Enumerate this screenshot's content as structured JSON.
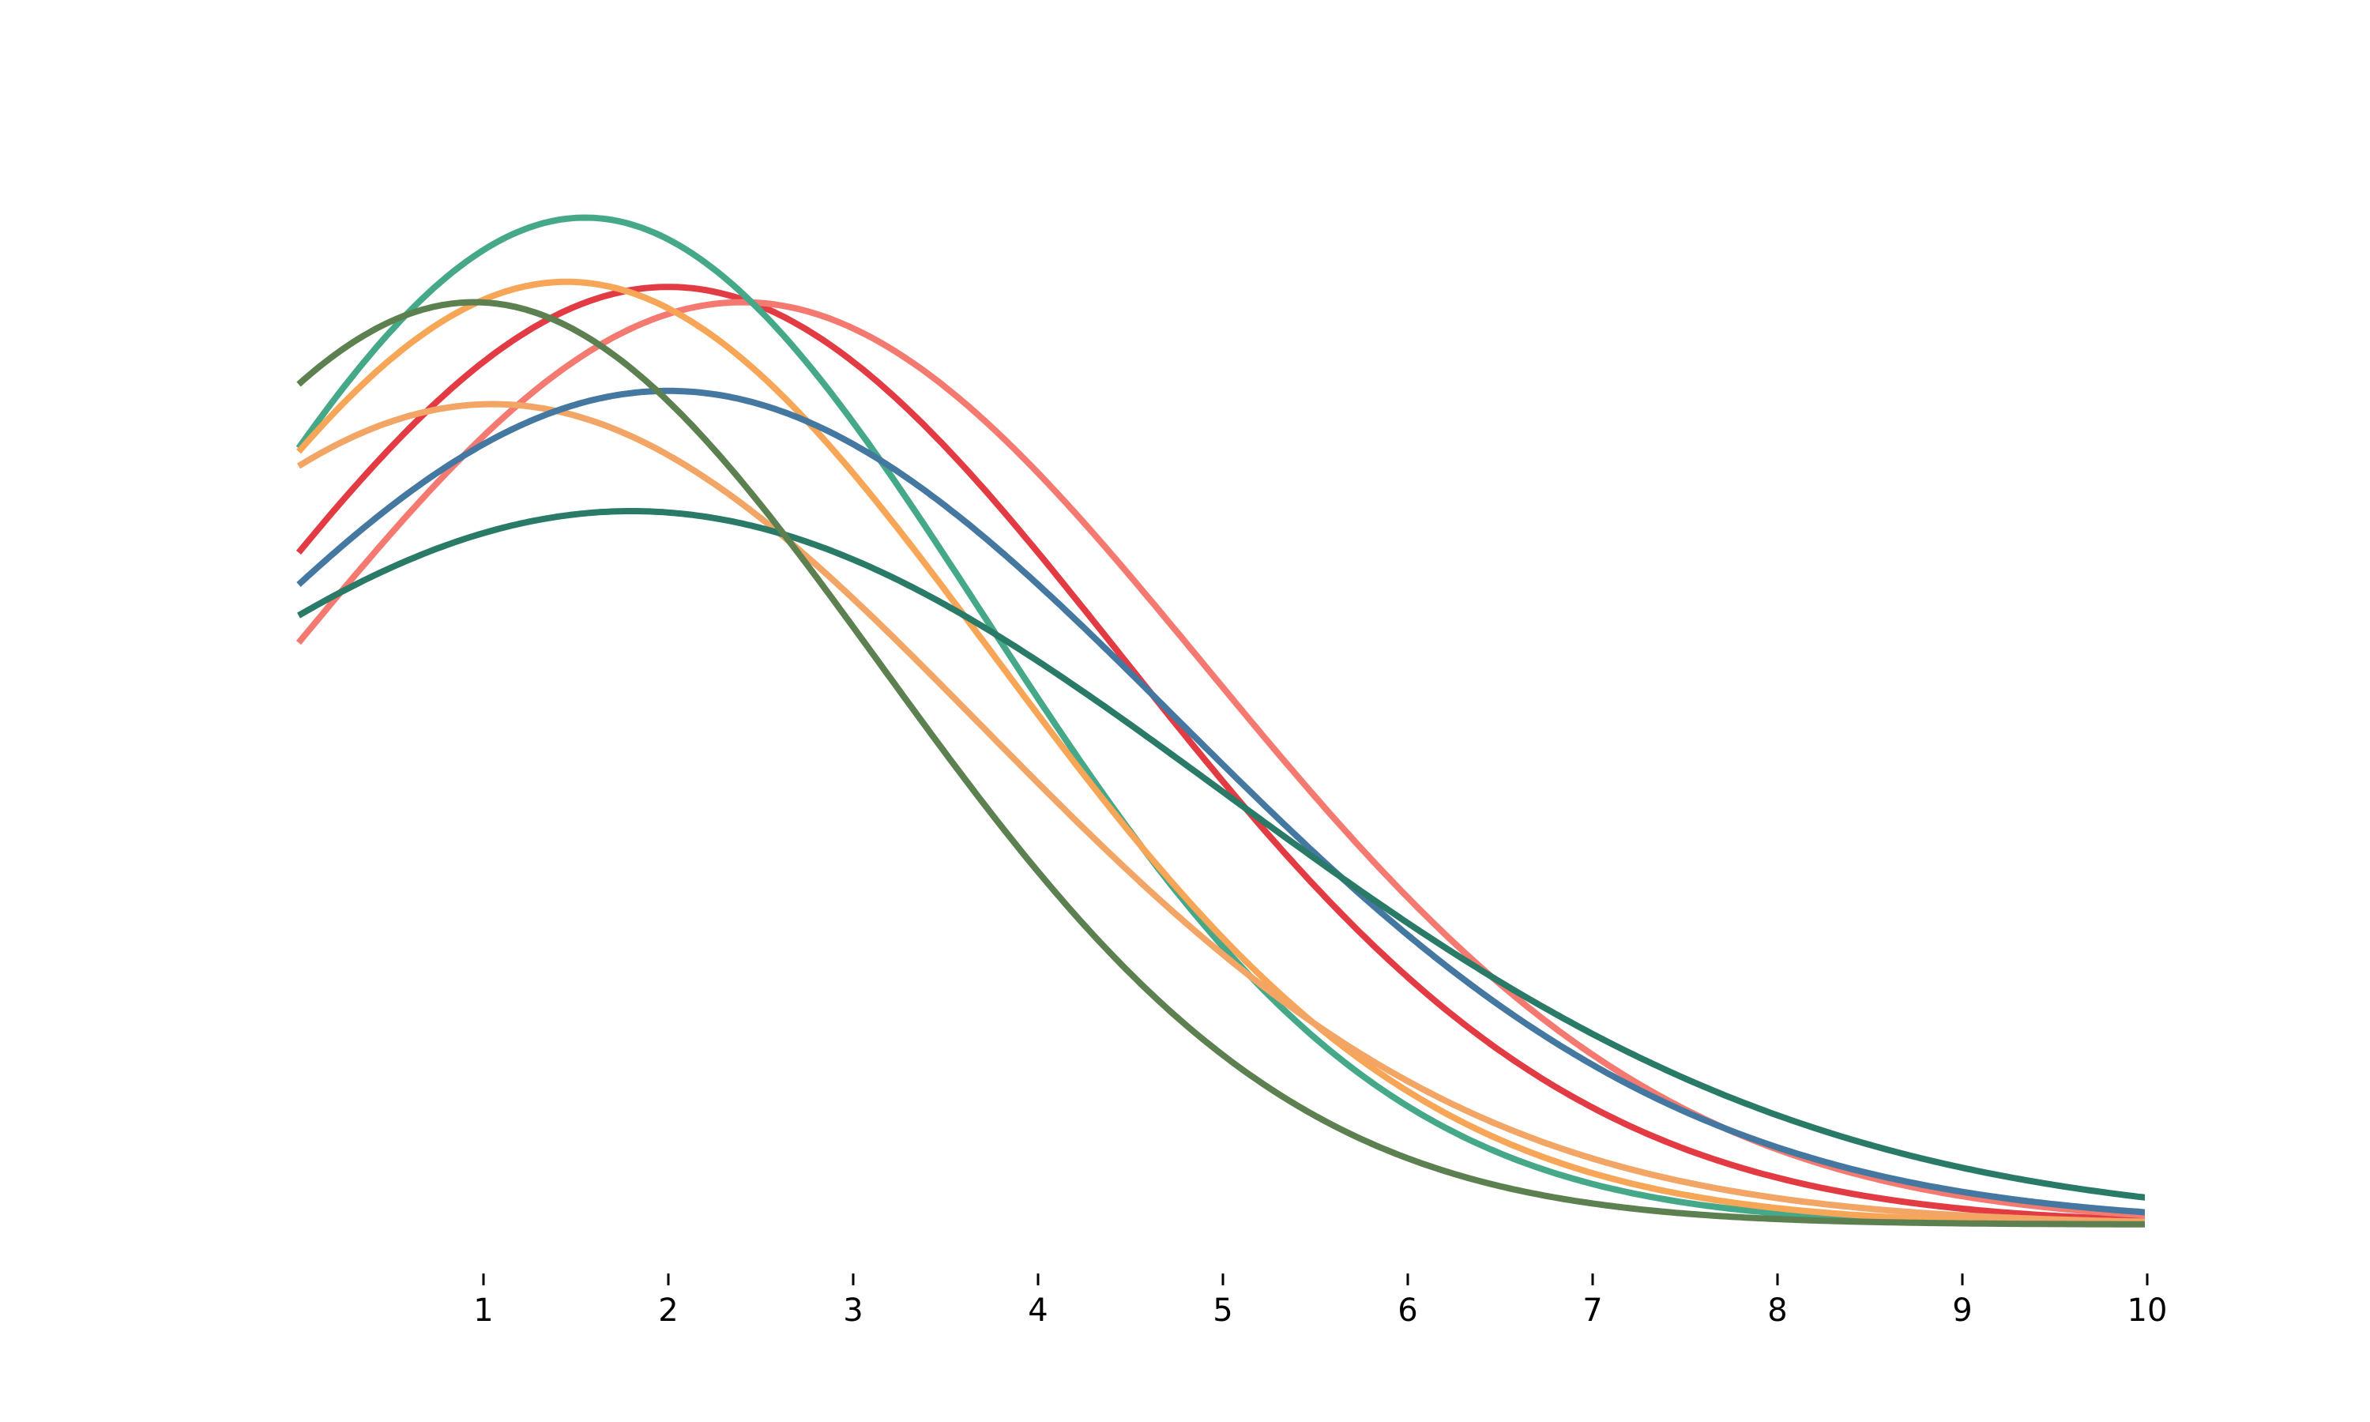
{
  "chart_data": {
    "type": "line",
    "title": "",
    "xlabel": "",
    "ylabel": "",
    "xlim": [
      0,
      10
    ],
    "ylim": [
      0,
      1
    ],
    "x_ticks": [
      1,
      2,
      3,
      4,
      5,
      6,
      7,
      8,
      9,
      10
    ],
    "y_axis_visible": false,
    "grid": false,
    "legend": "none",
    "series": [
      {
        "color": "#E23B43",
        "amplitude": 0.92,
        "mu": 2.0,
        "sigma": 2.45,
        "baseline": 0.0
      },
      {
        "color": "#F47970",
        "amplitude": 0.905,
        "mu": 2.4,
        "sigma": 2.5,
        "baseline": 0.0
      },
      {
        "color": "#44A889",
        "amplitude": 0.988,
        "mu": 1.55,
        "sigma": 2.15,
        "baseline": 0.0
      },
      {
        "color": "#F7A556",
        "amplitude": 0.925,
        "mu": 1.45,
        "sigma": 2.3,
        "baseline": 0.0
      },
      {
        "color": "#F2A564",
        "amplitude": 0.805,
        "mu": 1.05,
        "sigma": 2.65,
        "baseline": 0.0
      },
      {
        "color": "#4478A0",
        "amplitude": 0.818,
        "mu": 2.0,
        "sigma": 2.75,
        "baseline": 0.0
      },
      {
        "color": "#2A7A68",
        "amplitude": 0.7,
        "mu": 1.8,
        "sigma": 3.2,
        "baseline": 0.0
      },
      {
        "color": "#5C8050",
        "amplitude": 0.905,
        "mu": 0.95,
        "sigma": 2.2,
        "baseline": 0.0
      }
    ]
  }
}
